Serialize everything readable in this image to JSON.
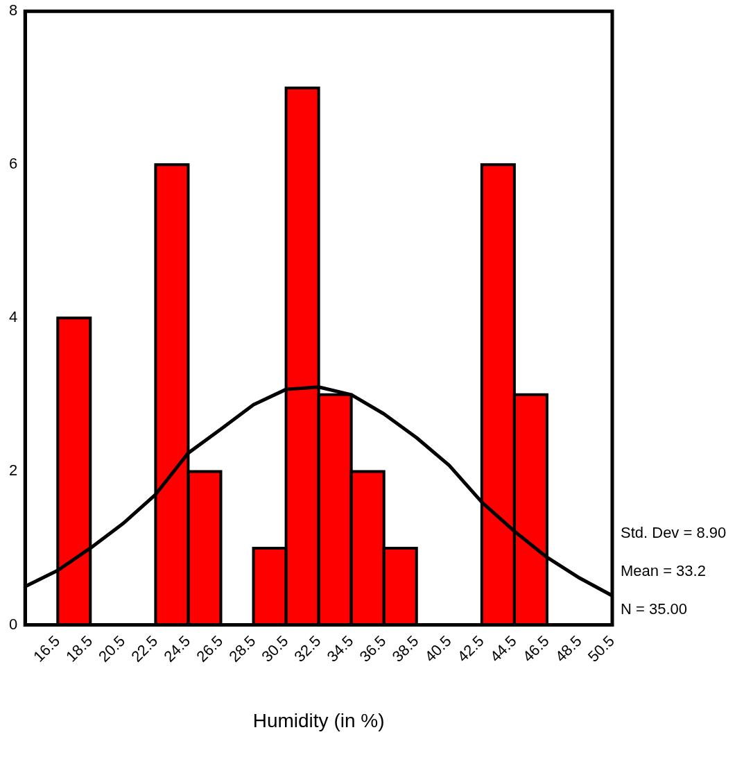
{
  "chart_data": {
    "type": "histogram",
    "xlabel": "Humidity (in %)",
    "bins": [
      14.5,
      16.5,
      18.5,
      20.5,
      22.5,
      24.5,
      26.5,
      28.5,
      30.5,
      32.5,
      34.5,
      36.5,
      38.5,
      40.5,
      42.5,
      44.5,
      46.5,
      48.5,
      50.5
    ],
    "values": [
      0,
      4,
      0,
      0,
      6,
      2,
      0,
      1,
      7,
      3,
      2,
      1,
      0,
      0,
      6,
      3,
      0,
      0
    ],
    "color": "#ff0000",
    "series": [
      {
        "type": "line",
        "color": "#000000",
        "x": [
          14.5,
          16.5,
          18.5,
          20.5,
          22.5,
          24.5,
          26.5,
          28.5,
          30.5,
          32.5,
          34.5,
          36.5,
          38.5,
          40.5,
          42.5,
          44.5,
          46.5,
          48.5,
          50.5
        ],
        "values": [
          0.5,
          0.71,
          1.0,
          1.32,
          1.7,
          2.24,
          2.55,
          2.87,
          3.07,
          3.1,
          3.0,
          2.75,
          2.44,
          2.08,
          1.6,
          1.22,
          0.88,
          0.61,
          0.38
        ]
      }
    ],
    "xlim": [
      14.5,
      50.5
    ],
    "xticks": [
      16.5,
      18.5,
      20.5,
      22.5,
      24.5,
      26.5,
      28.5,
      30.5,
      32.5,
      34.5,
      36.5,
      38.5,
      40.5,
      42.5,
      44.5,
      46.5,
      48.5,
      50.5
    ],
    "ylim": [
      0,
      8
    ],
    "yticks": [
      0,
      2,
      4,
      6,
      8
    ],
    "annotations": [
      "Std. Dev = 8.90",
      "Mean = 33.2",
      "N = 35.00"
    ],
    "grid": false,
    "legend": false,
    "marker": "none",
    "line_style": "solid"
  }
}
